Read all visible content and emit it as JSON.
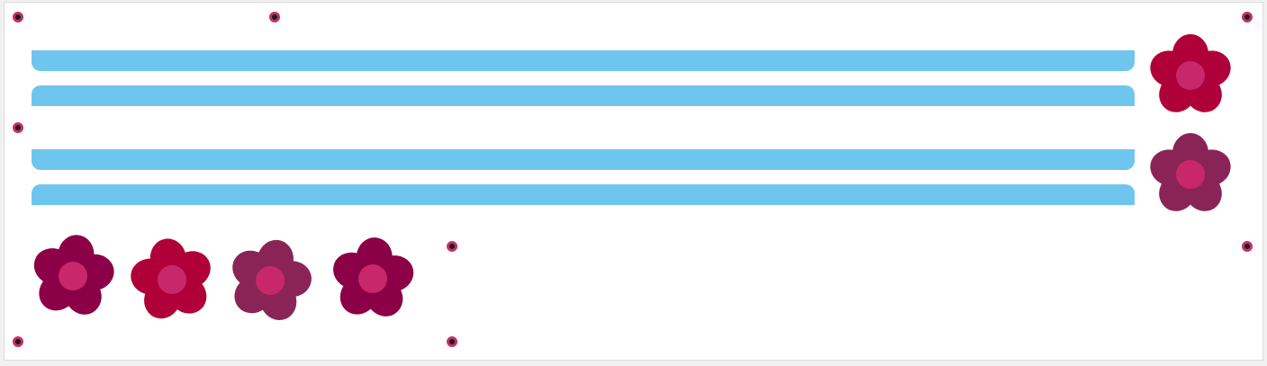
{
  "colors": {
    "bar": "#6ec6ee",
    "handle_ring": "#c4306a",
    "handle_dot": "#1b1b1b",
    "flower_center": "#c8286a",
    "flower_red": "#b0003a",
    "flower_crimson": "#8b0046",
    "flower_plum": "#8a2457"
  },
  "flowers": [
    {
      "name": "flower-red",
      "color": "#b0003a",
      "icon": "flower-icon"
    },
    {
      "name": "flower-plum",
      "color": "#8a2457",
      "icon": "flower-icon"
    },
    {
      "name": "flower-crimson",
      "color": "#8b0046",
      "icon": "flower-icon"
    },
    {
      "name": "flower-red",
      "color": "#b0003a",
      "icon": "flower-icon"
    },
    {
      "name": "flower-plum",
      "color": "#8a2457",
      "icon": "flower-icon"
    },
    {
      "name": "flower-crimson",
      "color": "#8b0046",
      "icon": "flower-icon"
    }
  ]
}
